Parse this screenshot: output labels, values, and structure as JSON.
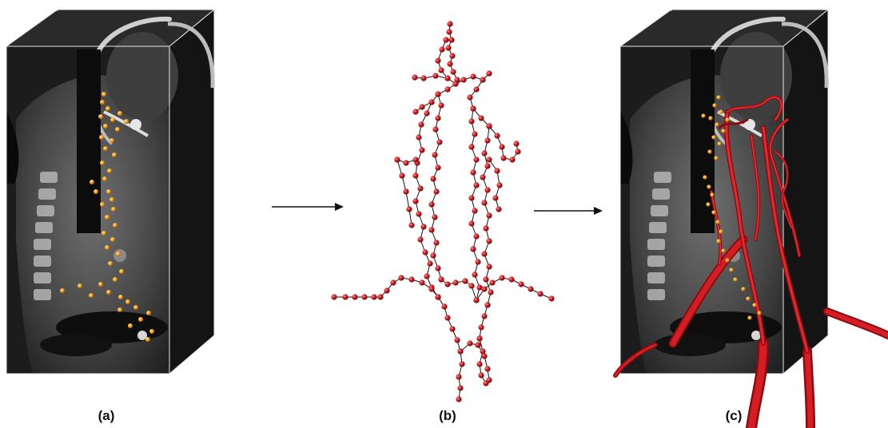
{
  "panels": [
    {
      "label": "(a)",
      "content": "ct-volume-with-seed-points"
    },
    {
      "label": "(b)",
      "content": "vessel-centerline-graph"
    },
    {
      "label": "(c)",
      "content": "reconstructed-vessel-tree-overlay"
    }
  ],
  "colors": {
    "seed_point": "#f5a11c",
    "graph_node": "#c9191e",
    "graph_edge": "#111111",
    "vessel": "#c2141b",
    "ct_bg": "#1c1c1c",
    "ct_tissue": "#6a6a6a",
    "ct_bone": "#c8c8c8",
    "box_edge": "#e8e8e8",
    "arrow": "#111111"
  },
  "icons": [
    "right-arrow-icon",
    "right-arrow-icon"
  ]
}
